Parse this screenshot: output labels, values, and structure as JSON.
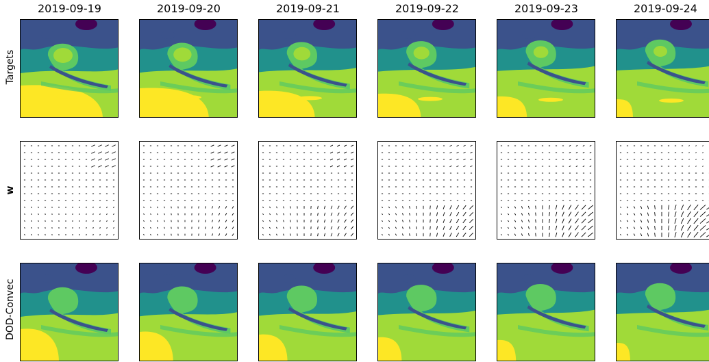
{
  "chart_data": {
    "type": "heatmap",
    "columns": [
      "2019-09-19",
      "2019-09-20",
      "2019-09-21",
      "2019-09-22",
      "2019-09-23",
      "2019-09-24"
    ],
    "rows": [
      {
        "label": "Targets",
        "kind": "contour",
        "bold": false
      },
      {
        "label": "w",
        "kind": "quiver",
        "bold": true
      },
      {
        "label": "DOD-Convec",
        "kind": "contour",
        "bold": false
      }
    ],
    "colormap": [
      "#440154",
      "#3b528b",
      "#21918c",
      "#5ec962",
      "#a0da39",
      "#fde725"
    ],
    "grid": false,
    "axes_ticks": false
  }
}
